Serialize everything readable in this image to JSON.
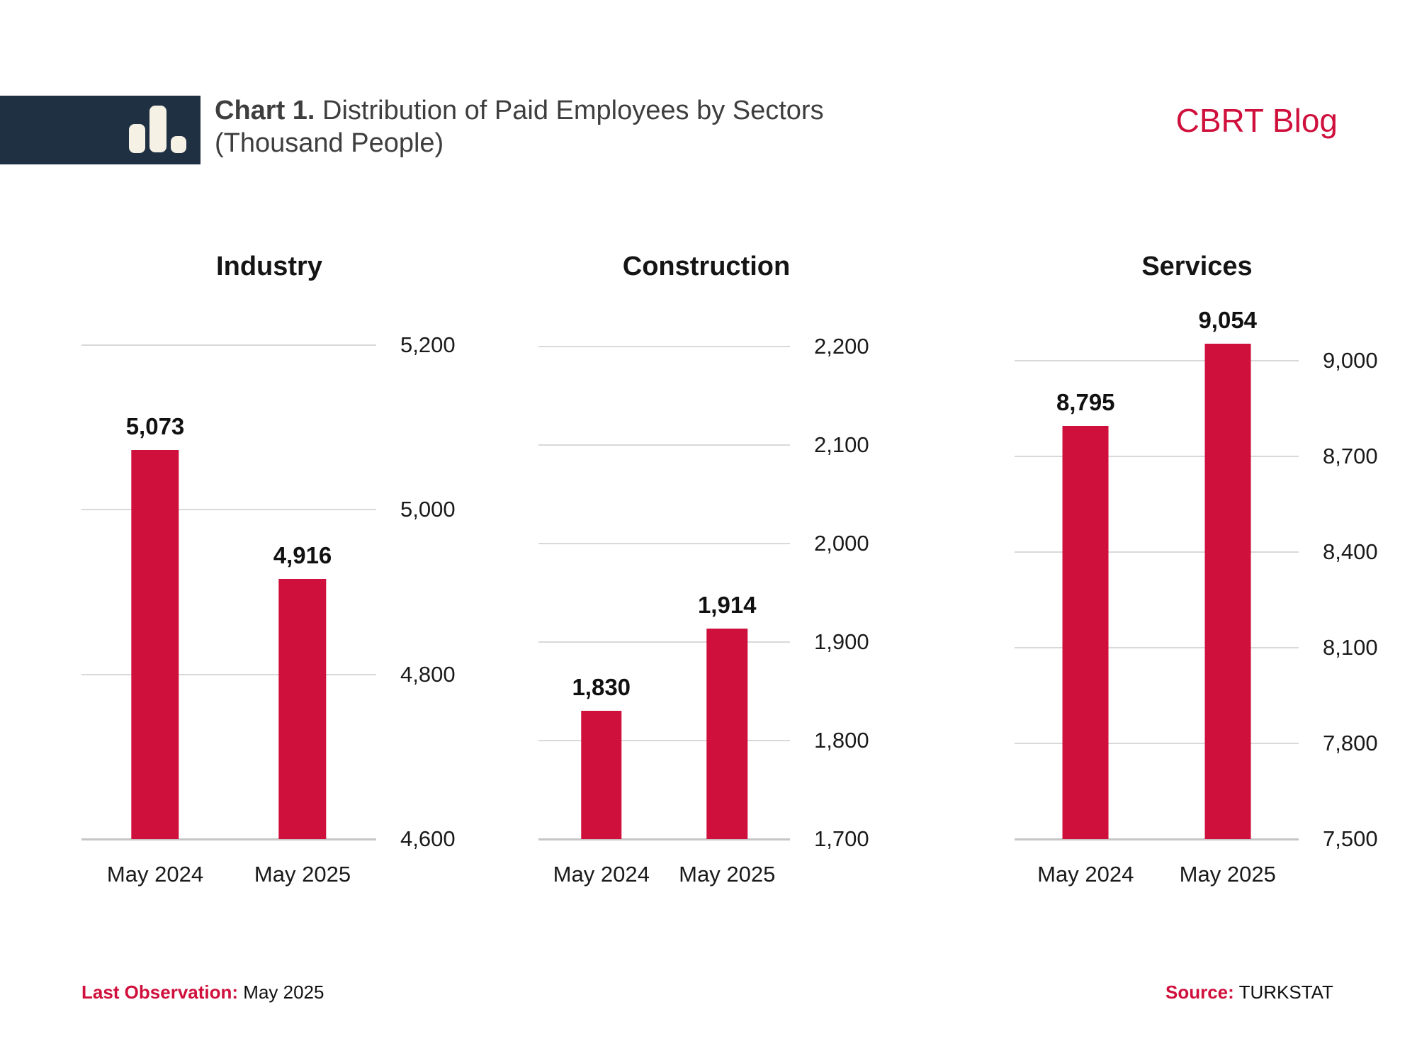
{
  "header": {
    "logo_icon": "bar-chart-icon",
    "title_prefix": "Chart 1.",
    "title_rest": " Distribution of Paid Employees by Sectors",
    "title_line2": "(Thousand People)",
    "brand": "CBRT Blog"
  },
  "footer": {
    "last_observation_label": "Last Observation:",
    "last_observation_value": "May 2025",
    "source_label": "Source:",
    "source_value": "TURKSTAT"
  },
  "colors": {
    "bar_red": "#D0103C",
    "navy": "#1F3043",
    "icon_cream": "#F6F1E5",
    "gridline": "#D9D9D9",
    "baseline": "#C6C6C6"
  },
  "chart_data": [
    {
      "type": "bar",
      "title": "Industry",
      "categories": [
        "May 2024",
        "May 2025"
      ],
      "values": [
        5073,
        4916
      ],
      "value_labels": [
        "5,073",
        "4,916"
      ],
      "ylim": [
        4600,
        5200
      ],
      "yticks": [
        5200,
        5000,
        4800,
        4600
      ],
      "ytick_labels": [
        "5,200",
        "5,000",
        "4,800",
        "4,600"
      ],
      "axis_side": "right",
      "grid": true,
      "legend": "none"
    },
    {
      "type": "bar",
      "title": "Construction",
      "categories": [
        "May 2024",
        "May 2025"
      ],
      "values": [
        1830,
        1914
      ],
      "value_labels": [
        "1,830",
        "1,914"
      ],
      "ylim": [
        1700,
        2200
      ],
      "yticks": [
        2200,
        2100,
        2000,
        1900,
        1800,
        1700
      ],
      "ytick_labels": [
        "2,200",
        "2,100",
        "2,000",
        "1,900",
        "1,800",
        "1,700"
      ],
      "axis_side": "right",
      "grid": true,
      "legend": "none"
    },
    {
      "type": "bar",
      "title": "Services",
      "categories": [
        "May 2024",
        "May 2025"
      ],
      "values": [
        8795,
        9054
      ],
      "value_labels": [
        "8,795",
        "9,054"
      ],
      "ylim": [
        7500,
        9000
      ],
      "yticks": [
        9000,
        8700,
        8400,
        8100,
        7800,
        7500
      ],
      "ytick_labels": [
        "9,000",
        "8,700",
        "8,400",
        "8,100",
        "7,800",
        "7,500"
      ],
      "axis_side": "right",
      "grid": true,
      "legend": "none"
    }
  ]
}
